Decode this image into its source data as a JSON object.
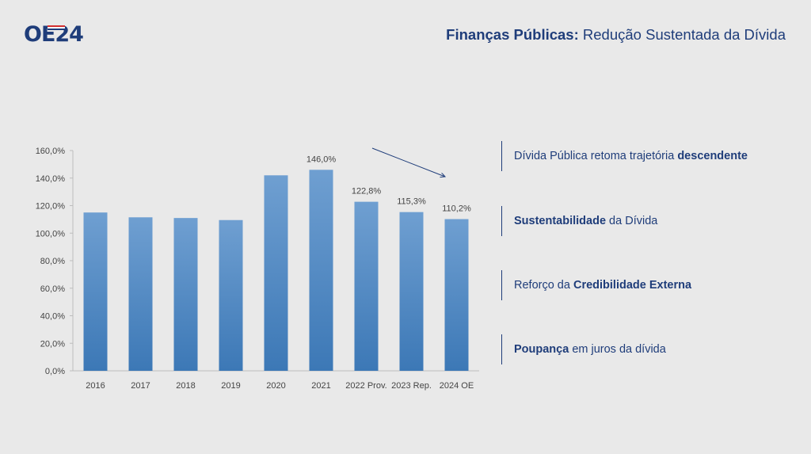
{
  "logo": {
    "text": "OE24",
    "stripe_colors": [
      "#d32f2f",
      "#ffffff",
      "#1f3d7a"
    ]
  },
  "header": {
    "title_bold": "Finanças Públicas:",
    "title_rest": "Redução Sustentada da Dívida"
  },
  "bullets": [
    {
      "pre": "Dívida Pública retoma trajetória ",
      "bold": "descendente",
      "post": ""
    },
    {
      "pre": "",
      "bold": "Sustentabilidade",
      "post": " da Dívida"
    },
    {
      "pre": "Reforço da ",
      "bold": "Credibilidade Externa",
      "post": ""
    },
    {
      "pre": "",
      "bold": "Poupança",
      "post": " em juros da dívida"
    }
  ],
  "colors": {
    "accent": "#1f3d7a",
    "bar_top": "#6f9fd1",
    "bar_bottom": "#3c78b6"
  },
  "chart_data": {
    "type": "bar",
    "categories": [
      "2016",
      "2017",
      "2018",
      "2019",
      "2020",
      "2021",
      "2022 Prov.",
      "2023 Rep.",
      "2024 OE"
    ],
    "values": [
      115.0,
      111.5,
      111.0,
      109.5,
      142.0,
      146.0,
      122.8,
      115.3,
      110.2
    ],
    "data_labels": [
      "",
      "",
      "",
      "",
      "",
      "146,0%",
      "122,8%",
      "115,3%",
      "110,2%"
    ],
    "yticks": [
      "0,0%",
      "20,0%",
      "40,0%",
      "60,0%",
      "80,0%",
      "100,0%",
      "120,0%",
      "140,0%",
      "160,0%"
    ],
    "ylim": [
      0,
      160
    ],
    "title": "",
    "xlabel": "",
    "ylabel": "",
    "grid": false,
    "trend_arrow": true
  }
}
